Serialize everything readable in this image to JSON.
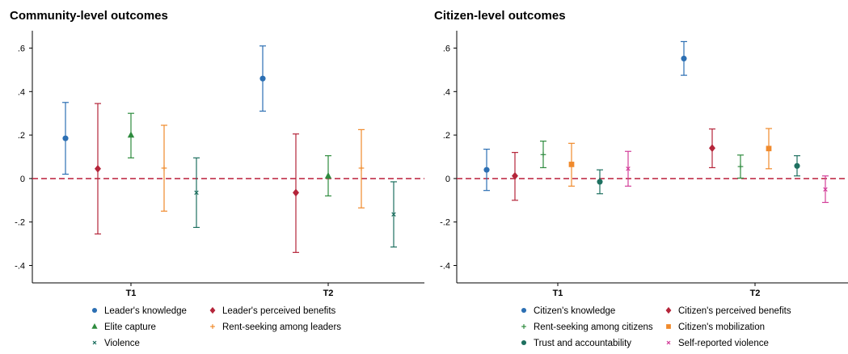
{
  "chart_data": [
    {
      "type": "scatter",
      "title": "Community-level outcomes",
      "categories": [
        "T1",
        "T2"
      ],
      "ylim": [
        -0.48,
        0.68
      ],
      "yticks": [
        -0.4,
        -0.2,
        0,
        0.2,
        0.4,
        0.6
      ],
      "ytick_labels": [
        "-.4",
        "-.2",
        "0",
        ".2",
        ".4",
        ".6"
      ],
      "reference_line": 0,
      "legend_placement": "bottom",
      "series": [
        {
          "name": "Leader's knowledge",
          "marker": "circle",
          "color": "#2c6fb3",
          "points": [
            {
              "x": "T1",
              "y": 0.185,
              "lo": 0.02,
              "hi": 0.35
            },
            {
              "x": "T2",
              "y": 0.46,
              "lo": 0.31,
              "hi": 0.61
            }
          ]
        },
        {
          "name": "Leader's perceived benefits",
          "marker": "diamond",
          "color": "#b5253a",
          "points": [
            {
              "x": "T1",
              "y": 0.045,
              "lo": -0.255,
              "hi": 0.345
            },
            {
              "x": "T2",
              "y": -0.065,
              "lo": -0.34,
              "hi": 0.205
            }
          ]
        },
        {
          "name": "Elite capture",
          "marker": "triangle",
          "color": "#2e8b3e",
          "points": [
            {
              "x": "T1",
              "y": 0.2,
              "lo": 0.095,
              "hi": 0.3
            },
            {
              "x": "T2",
              "y": 0.012,
              "lo": -0.08,
              "hi": 0.105
            }
          ]
        },
        {
          "name": "Rent-seeking among leaders",
          "marker": "plus",
          "color": "#f08a2c",
          "points": [
            {
              "x": "T1",
              "y": 0.048,
              "lo": -0.15,
              "hi": 0.245
            },
            {
              "x": "T2",
              "y": 0.048,
              "lo": -0.135,
              "hi": 0.225
            }
          ]
        },
        {
          "name": "Violence",
          "marker": "x",
          "color": "#1e7060",
          "points": [
            {
              "x": "T1",
              "y": -0.065,
              "lo": -0.225,
              "hi": 0.095
            },
            {
              "x": "T2",
              "y": -0.165,
              "lo": -0.315,
              "hi": -0.015
            }
          ]
        }
      ]
    },
    {
      "type": "scatter",
      "title": "Citizen-level outcomes",
      "categories": [
        "T1",
        "T2"
      ],
      "ylim": [
        -0.48,
        0.68
      ],
      "yticks": [
        -0.4,
        -0.2,
        0,
        0.2,
        0.4,
        0.6
      ],
      "ytick_labels": [
        "-.4",
        "-.2",
        "0",
        ".2",
        ".4",
        ".6"
      ],
      "reference_line": 0,
      "legend_placement": "bottom",
      "series": [
        {
          "name": "Citizen's knowledge",
          "marker": "circle",
          "color": "#2c6fb3",
          "points": [
            {
              "x": "T1",
              "y": 0.04,
              "lo": -0.055,
              "hi": 0.135
            },
            {
              "x": "T2",
              "y": 0.552,
              "lo": 0.475,
              "hi": 0.63
            }
          ]
        },
        {
          "name": " Citizen's perceived benefits",
          "marker": "diamond",
          "color": "#b5253a",
          "points": [
            {
              "x": "T1",
              "y": 0.012,
              "lo": -0.1,
              "hi": 0.12
            },
            {
              "x": "T2",
              "y": 0.14,
              "lo": 0.05,
              "hi": 0.228
            }
          ]
        },
        {
          "name": "Rent-seeking among citizens",
          "marker": "plus",
          "color": "#2e8b3e",
          "points": [
            {
              "x": "T1",
              "y": 0.11,
              "lo": 0.05,
              "hi": 0.172
            },
            {
              "x": "T2",
              "y": 0.055,
              "lo": 0.002,
              "hi": 0.108
            }
          ]
        },
        {
          "name": "Citizen's mobilization",
          "marker": "square",
          "color": "#f08a2c",
          "points": [
            {
              "x": "T1",
              "y": 0.065,
              "lo": -0.035,
              "hi": 0.162
            },
            {
              "x": "T2",
              "y": 0.138,
              "lo": 0.045,
              "hi": 0.23
            }
          ]
        },
        {
          "name": "Trust and accountability",
          "marker": "circle",
          "color": "#1e7060",
          "points": [
            {
              "x": "T1",
              "y": -0.015,
              "lo": -0.07,
              "hi": 0.04
            },
            {
              "x": "T2",
              "y": 0.058,
              "lo": 0.012,
              "hi": 0.105
            }
          ]
        },
        {
          "name": "Self-reported violence",
          "marker": "x",
          "color": "#d33f9a",
          "points": [
            {
              "x": "T1",
              "y": 0.045,
              "lo": -0.035,
              "hi": 0.125
            },
            {
              "x": "T2",
              "y": -0.05,
              "lo": -0.11,
              "hi": 0.012
            }
          ]
        }
      ]
    }
  ]
}
